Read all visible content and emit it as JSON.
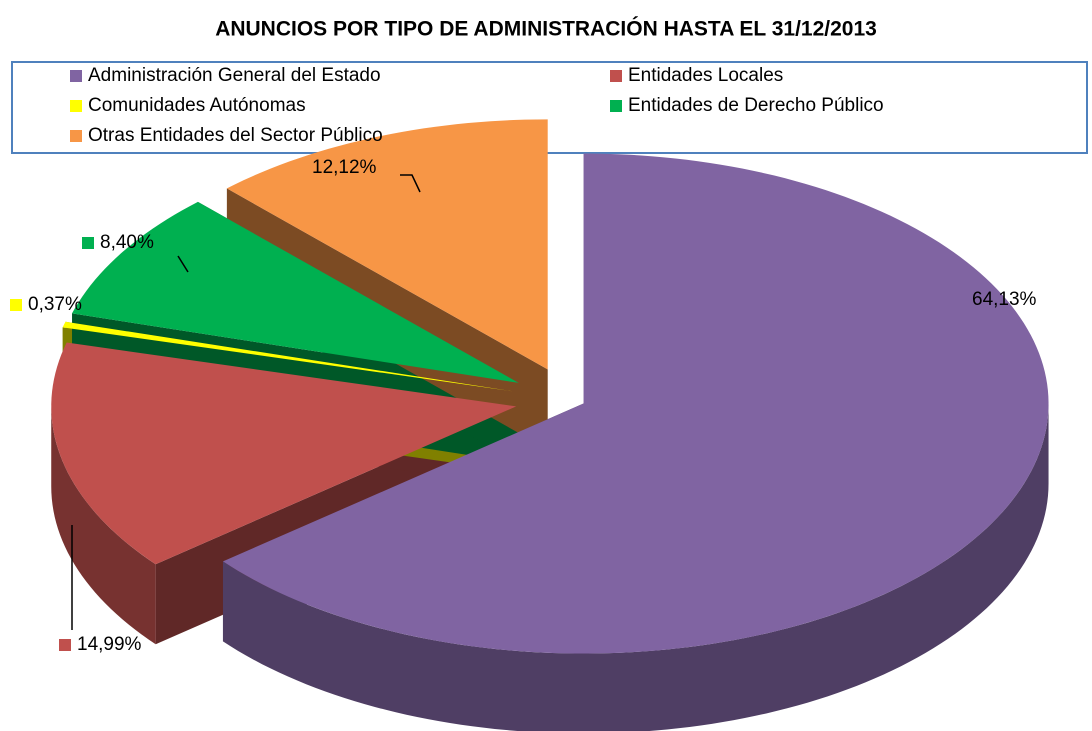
{
  "chart_data": {
    "type": "pie3d",
    "title": "ANUNCIOS POR TIPO DE ADMINISTRACIÓN HASTA EL 31/12/2013",
    "categories": [
      "Administración General del Estado",
      "Entidades Locales",
      "Comunidades Autónomas",
      "Entidades de Derecho Público",
      "Otras Entidades del Sector Público"
    ],
    "values": [
      64.13,
      14.99,
      0.37,
      8.4,
      12.12
    ],
    "value_labels": [
      "64,13%",
      "14,99%",
      "0,37%",
      "8,40%",
      "12,12%"
    ],
    "colors": [
      "#8064a2",
      "#c0504d",
      "#ffff00",
      "#00b050",
      "#f79646"
    ]
  }
}
